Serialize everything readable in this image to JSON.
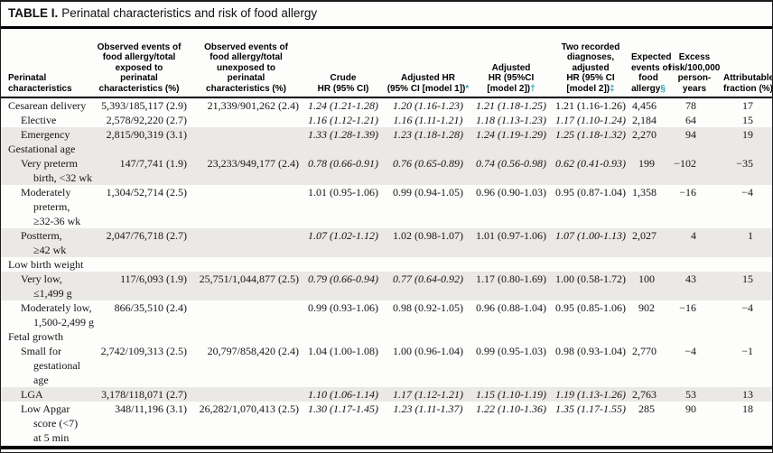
{
  "title": {
    "label": "TABLE I.",
    "text": "Perinatal characteristics and risk of food allergy"
  },
  "accent_color": "#2aa1b7",
  "shaded_row_color": "#ebe9e6",
  "table": {
    "columns": [
      {
        "key": "label",
        "lines": [
          "Perinatal",
          "characteristics"
        ],
        "marker": ""
      },
      {
        "key": "observed_exposed",
        "lines": [
          "Observed events of",
          "food allergy/total",
          "exposed to",
          "perinatal",
          "characteristics (%)"
        ],
        "marker": ""
      },
      {
        "key": "observed_unexposed",
        "lines": [
          "Observed events of",
          "food allergy/total",
          "unexposed to",
          "perinatal",
          "characteristics (%)"
        ],
        "marker": ""
      },
      {
        "key": "crude_hr",
        "lines": [
          "Crude",
          "HR (95% CI)"
        ],
        "marker": ""
      },
      {
        "key": "adjusted_hr_model1",
        "lines": [
          "Adjusted HR",
          "(95% CI [model 1])"
        ],
        "marker": "*"
      },
      {
        "key": "adjusted_hr_model2",
        "lines": [
          "Adjusted",
          "HR (95%CI",
          "[model 2])"
        ],
        "marker": "†"
      },
      {
        "key": "two_diagnoses_hr",
        "lines": [
          "Two recorded",
          "diagnoses,",
          "adjusted",
          "HR (95% CI",
          "[model 2])"
        ],
        "marker": "‡"
      },
      {
        "key": "expected_events",
        "lines": [
          "Expected",
          "events of",
          "food",
          "allergy"
        ],
        "marker": "§"
      },
      {
        "key": "excess_risk",
        "lines": [
          "Excess",
          "risk/100,000",
          "person-",
          "years"
        ],
        "marker": ""
      },
      {
        "key": "attributable_fraction",
        "lines": [
          "Attributable",
          "fraction (%)"
        ],
        "marker": ""
      }
    ],
    "rows": [
      {
        "section": false,
        "indent": 0,
        "shaded": false,
        "label": [
          "Cesarean delivery"
        ],
        "observed_exposed": "5,393/185,117 (2.9)",
        "observed_unexposed": "21,339/901,262 (2.4)",
        "crude_hr": {
          "text": "1.24 (1.21-1.28)",
          "italic": true
        },
        "adjusted_hr_model1": {
          "text": "1.20 (1.16-1.23)",
          "italic": true
        },
        "adjusted_hr_model2": {
          "text": "1.21 (1.18-1.25)",
          "italic": true
        },
        "two_diagnoses_hr": {
          "text": "1.21 (1.16-1.26)",
          "italic": false
        },
        "expected_events": "4,456",
        "excess_risk": "78",
        "attributable_fraction": "17"
      },
      {
        "section": false,
        "indent": 1,
        "shaded": false,
        "label": [
          "Elective"
        ],
        "observed_exposed": "2,578/92,220 (2.7)",
        "observed_unexposed": "",
        "crude_hr": {
          "text": "1.16 (1.12-1.21)",
          "italic": true
        },
        "adjusted_hr_model1": {
          "text": "1.16 (1.11-1.21)",
          "italic": true
        },
        "adjusted_hr_model2": {
          "text": "1.18 (1.13-1.23)",
          "italic": true
        },
        "two_diagnoses_hr": {
          "text": "1.17 (1.10-1.24)",
          "italic": true
        },
        "expected_events": "2,184",
        "excess_risk": "64",
        "attributable_fraction": "15"
      },
      {
        "section": false,
        "indent": 1,
        "shaded": true,
        "label": [
          "Emergency"
        ],
        "observed_exposed": "2,815/90,319 (3.1)",
        "observed_unexposed": "",
        "crude_hr": {
          "text": "1.33 (1.28-1.39)",
          "italic": true
        },
        "adjusted_hr_model1": {
          "text": "1.23 (1.18-1.28)",
          "italic": true
        },
        "adjusted_hr_model2": {
          "text": "1.24 (1.19-1.29)",
          "italic": true
        },
        "two_diagnoses_hr": {
          "text": "1.25 (1.18-1.32)",
          "italic": true
        },
        "expected_events": "2,270",
        "excess_risk": "94",
        "attributable_fraction": "19"
      },
      {
        "section": true,
        "indent": 0,
        "shaded": true,
        "label": [
          "Gestational age"
        ],
        "observed_exposed": "",
        "observed_unexposed": "",
        "crude_hr": "",
        "adjusted_hr_model1": "",
        "adjusted_hr_model2": "",
        "two_diagnoses_hr": "",
        "expected_events": "",
        "excess_risk": "",
        "attributable_fraction": ""
      },
      {
        "section": false,
        "indent": 1,
        "shaded": true,
        "label": [
          "Very preterm",
          "birth, <32 wk"
        ],
        "observed_exposed": "147/7,741 (1.9)",
        "observed_unexposed": "23,233/949,177 (2.4)",
        "crude_hr": {
          "text": "0.78 (0.66-0.91)",
          "italic": true
        },
        "adjusted_hr_model1": {
          "text": "0.76 (0.65-0.89)",
          "italic": true
        },
        "adjusted_hr_model2": {
          "text": "0.74 (0.56-0.98)",
          "italic": true
        },
        "two_diagnoses_hr": {
          "text": "0.62 (0.41-0.93)",
          "italic": true
        },
        "expected_events": "199",
        "excess_risk": "−102",
        "attributable_fraction": "−35"
      },
      {
        "section": false,
        "indent": 1,
        "shaded": false,
        "label": [
          "Moderately",
          "preterm,",
          "≥32-36 wk"
        ],
        "observed_exposed": "1,304/52,714 (2.5)",
        "observed_unexposed": "",
        "crude_hr": {
          "text": "1.01 (0.95-1.06)",
          "italic": false
        },
        "adjusted_hr_model1": {
          "text": "0.99 (0.94-1.05)",
          "italic": false
        },
        "adjusted_hr_model2": {
          "text": "0.96 (0.90-1.03)",
          "italic": false
        },
        "two_diagnoses_hr": {
          "text": "0.95 (0.87-1.04)",
          "italic": false
        },
        "expected_events": "1,358",
        "excess_risk": "−16",
        "attributable_fraction": "−4"
      },
      {
        "section": false,
        "indent": 1,
        "shaded": true,
        "label": [
          "Postterm,",
          "≥42 wk"
        ],
        "observed_exposed": "2,047/76,718 (2.7)",
        "observed_unexposed": "",
        "crude_hr": {
          "text": "1.07 (1.02-1.12)",
          "italic": true
        },
        "adjusted_hr_model1": {
          "text": "1.02 (0.98-1.07)",
          "italic": false
        },
        "adjusted_hr_model2": {
          "text": "1.01 (0.97-1.06)",
          "italic": false
        },
        "two_diagnoses_hr": {
          "text": "1.07 (1.00-1.13)",
          "italic": true
        },
        "expected_events": "2,027",
        "excess_risk": "4",
        "attributable_fraction": "1"
      },
      {
        "section": true,
        "indent": 0,
        "shaded": false,
        "label": [
          "Low birth weight"
        ],
        "observed_exposed": "",
        "observed_unexposed": "",
        "crude_hr": "",
        "adjusted_hr_model1": "",
        "adjusted_hr_model2": "",
        "two_diagnoses_hr": "",
        "expected_events": "",
        "excess_risk": "",
        "attributable_fraction": ""
      },
      {
        "section": false,
        "indent": 1,
        "shaded": true,
        "label": [
          "Very low,",
          "≤1,499 g"
        ],
        "observed_exposed": "117/6,093 (1.9)",
        "observed_unexposed": "25,751/1,044,877 (2.5)",
        "crude_hr": {
          "text": "0.79 (0.66-0.94)",
          "italic": true
        },
        "adjusted_hr_model1": {
          "text": "0.77 (0.64-0.92)",
          "italic": true
        },
        "adjusted_hr_model2": {
          "text": "1.17 (0.80-1.69)",
          "italic": false
        },
        "two_diagnoses_hr": {
          "text": "1.00 (0.58-1.72)",
          "italic": false
        },
        "expected_events": "100",
        "excess_risk": "43",
        "attributable_fraction": "15"
      },
      {
        "section": false,
        "indent": 1,
        "shaded": false,
        "label": [
          "Moderately low,",
          "1,500-2,499 g"
        ],
        "observed_exposed": "866/35,510 (2.4)",
        "observed_unexposed": "",
        "crude_hr": {
          "text": "0.99 (0.93-1.06)",
          "italic": false
        },
        "adjusted_hr_model1": {
          "text": "0.98 (0.92-1.05)",
          "italic": false
        },
        "adjusted_hr_model2": {
          "text": "0.96 (0.88-1.04)",
          "italic": false
        },
        "two_diagnoses_hr": {
          "text": "0.95 (0.85-1.06)",
          "italic": false
        },
        "expected_events": "902",
        "excess_risk": "−16",
        "attributable_fraction": "−4"
      },
      {
        "section": true,
        "indent": 0,
        "shaded": false,
        "label": [
          "Fetal growth"
        ],
        "observed_exposed": "",
        "observed_unexposed": "",
        "crude_hr": "",
        "adjusted_hr_model1": "",
        "adjusted_hr_model2": "",
        "two_diagnoses_hr": "",
        "expected_events": "",
        "excess_risk": "",
        "attributable_fraction": ""
      },
      {
        "section": false,
        "indent": 1,
        "shaded": false,
        "label": [
          "Small for",
          "gestational",
          "age"
        ],
        "observed_exposed": "2,742/109,313 (2.5)",
        "observed_unexposed": "20,797/858,420 (2.4)",
        "crude_hr": {
          "text": "1.04 (1.00-1.08)",
          "italic": false
        },
        "adjusted_hr_model1": {
          "text": "1.00 (0.96-1.04)",
          "italic": false
        },
        "adjusted_hr_model2": {
          "text": "0.99 (0.95-1.03)",
          "italic": false
        },
        "two_diagnoses_hr": {
          "text": "0.98 (0.93-1.04)",
          "italic": false
        },
        "expected_events": "2,770",
        "excess_risk": "−4",
        "attributable_fraction": "−1"
      },
      {
        "section": false,
        "indent": 1,
        "shaded": true,
        "label": [
          "LGA"
        ],
        "observed_exposed": "3,178/118,071 (2.7)",
        "observed_unexposed": "",
        "crude_hr": {
          "text": "1.10 (1.06-1.14)",
          "italic": true
        },
        "adjusted_hr_model1": {
          "text": "1.17 (1.12-1.21)",
          "italic": true
        },
        "adjusted_hr_model2": {
          "text": "1.15 (1.10-1.19)",
          "italic": true
        },
        "two_diagnoses_hr": {
          "text": "1.19 (1.13-1.26)",
          "italic": true
        },
        "expected_events": "2,763",
        "excess_risk": "53",
        "attributable_fraction": "13"
      },
      {
        "section": false,
        "indent": 1,
        "shaded": false,
        "label": [
          "Low Apgar",
          "score (<7)",
          "at 5 min"
        ],
        "observed_exposed": "348/11,196 (3.1)",
        "observed_unexposed": "26,282/1,070,413 (2.5)",
        "crude_hr": {
          "text": "1.30 (1.17-1.45)",
          "italic": true
        },
        "adjusted_hr_model1": {
          "text": "1.23 (1.11-1.37)",
          "italic": true
        },
        "adjusted_hr_model2": {
          "text": "1.22 (1.10-1.36)",
          "italic": true
        },
        "two_diagnoses_hr": {
          "text": "1.35 (1.17-1.55)",
          "italic": true
        },
        "expected_events": "285",
        "excess_risk": "90",
        "attributable_fraction": "18"
      }
    ]
  }
}
